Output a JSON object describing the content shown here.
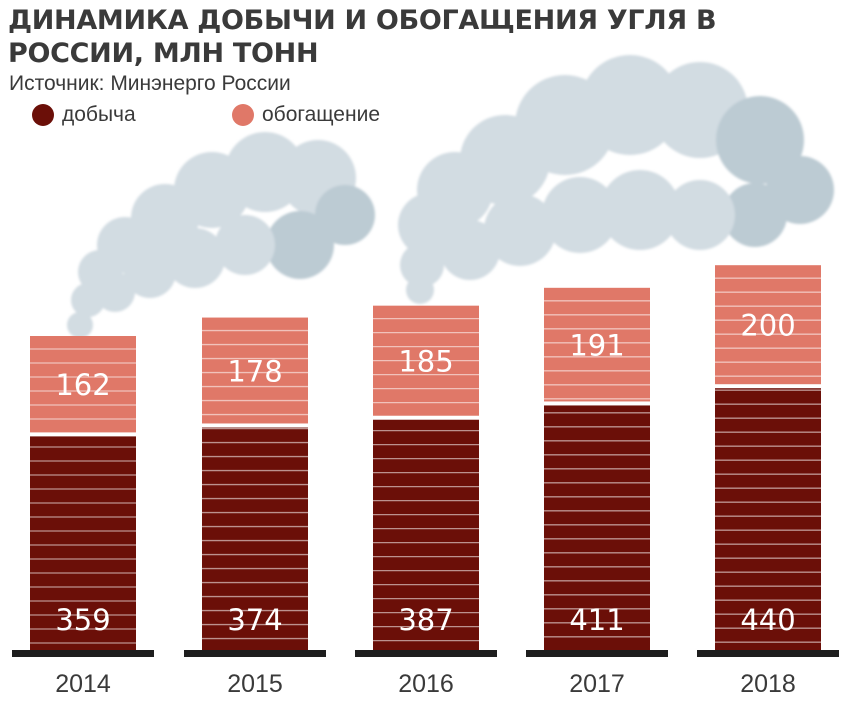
{
  "chart_data": {
    "type": "bar",
    "stacked": true,
    "title": "ДИНАМИКА ДОБЫЧИ И ОБОГАЩЕНИЯ УГЛЯ В РОССИИ, МЛН ТОНН",
    "subtitle": "Источник: Минэнерго России",
    "categories": [
      "2014",
      "2015",
      "2016",
      "2017",
      "2018"
    ],
    "series": [
      {
        "name": "добыча",
        "color": "#6b0f08",
        "values": [
          359,
          374,
          387,
          411,
          440
        ]
      },
      {
        "name": "обогащение",
        "color": "#e07868",
        "values": [
          162,
          178,
          185,
          191,
          200
        ]
      }
    ],
    "legend_position": "top-left",
    "grid": false
  }
}
